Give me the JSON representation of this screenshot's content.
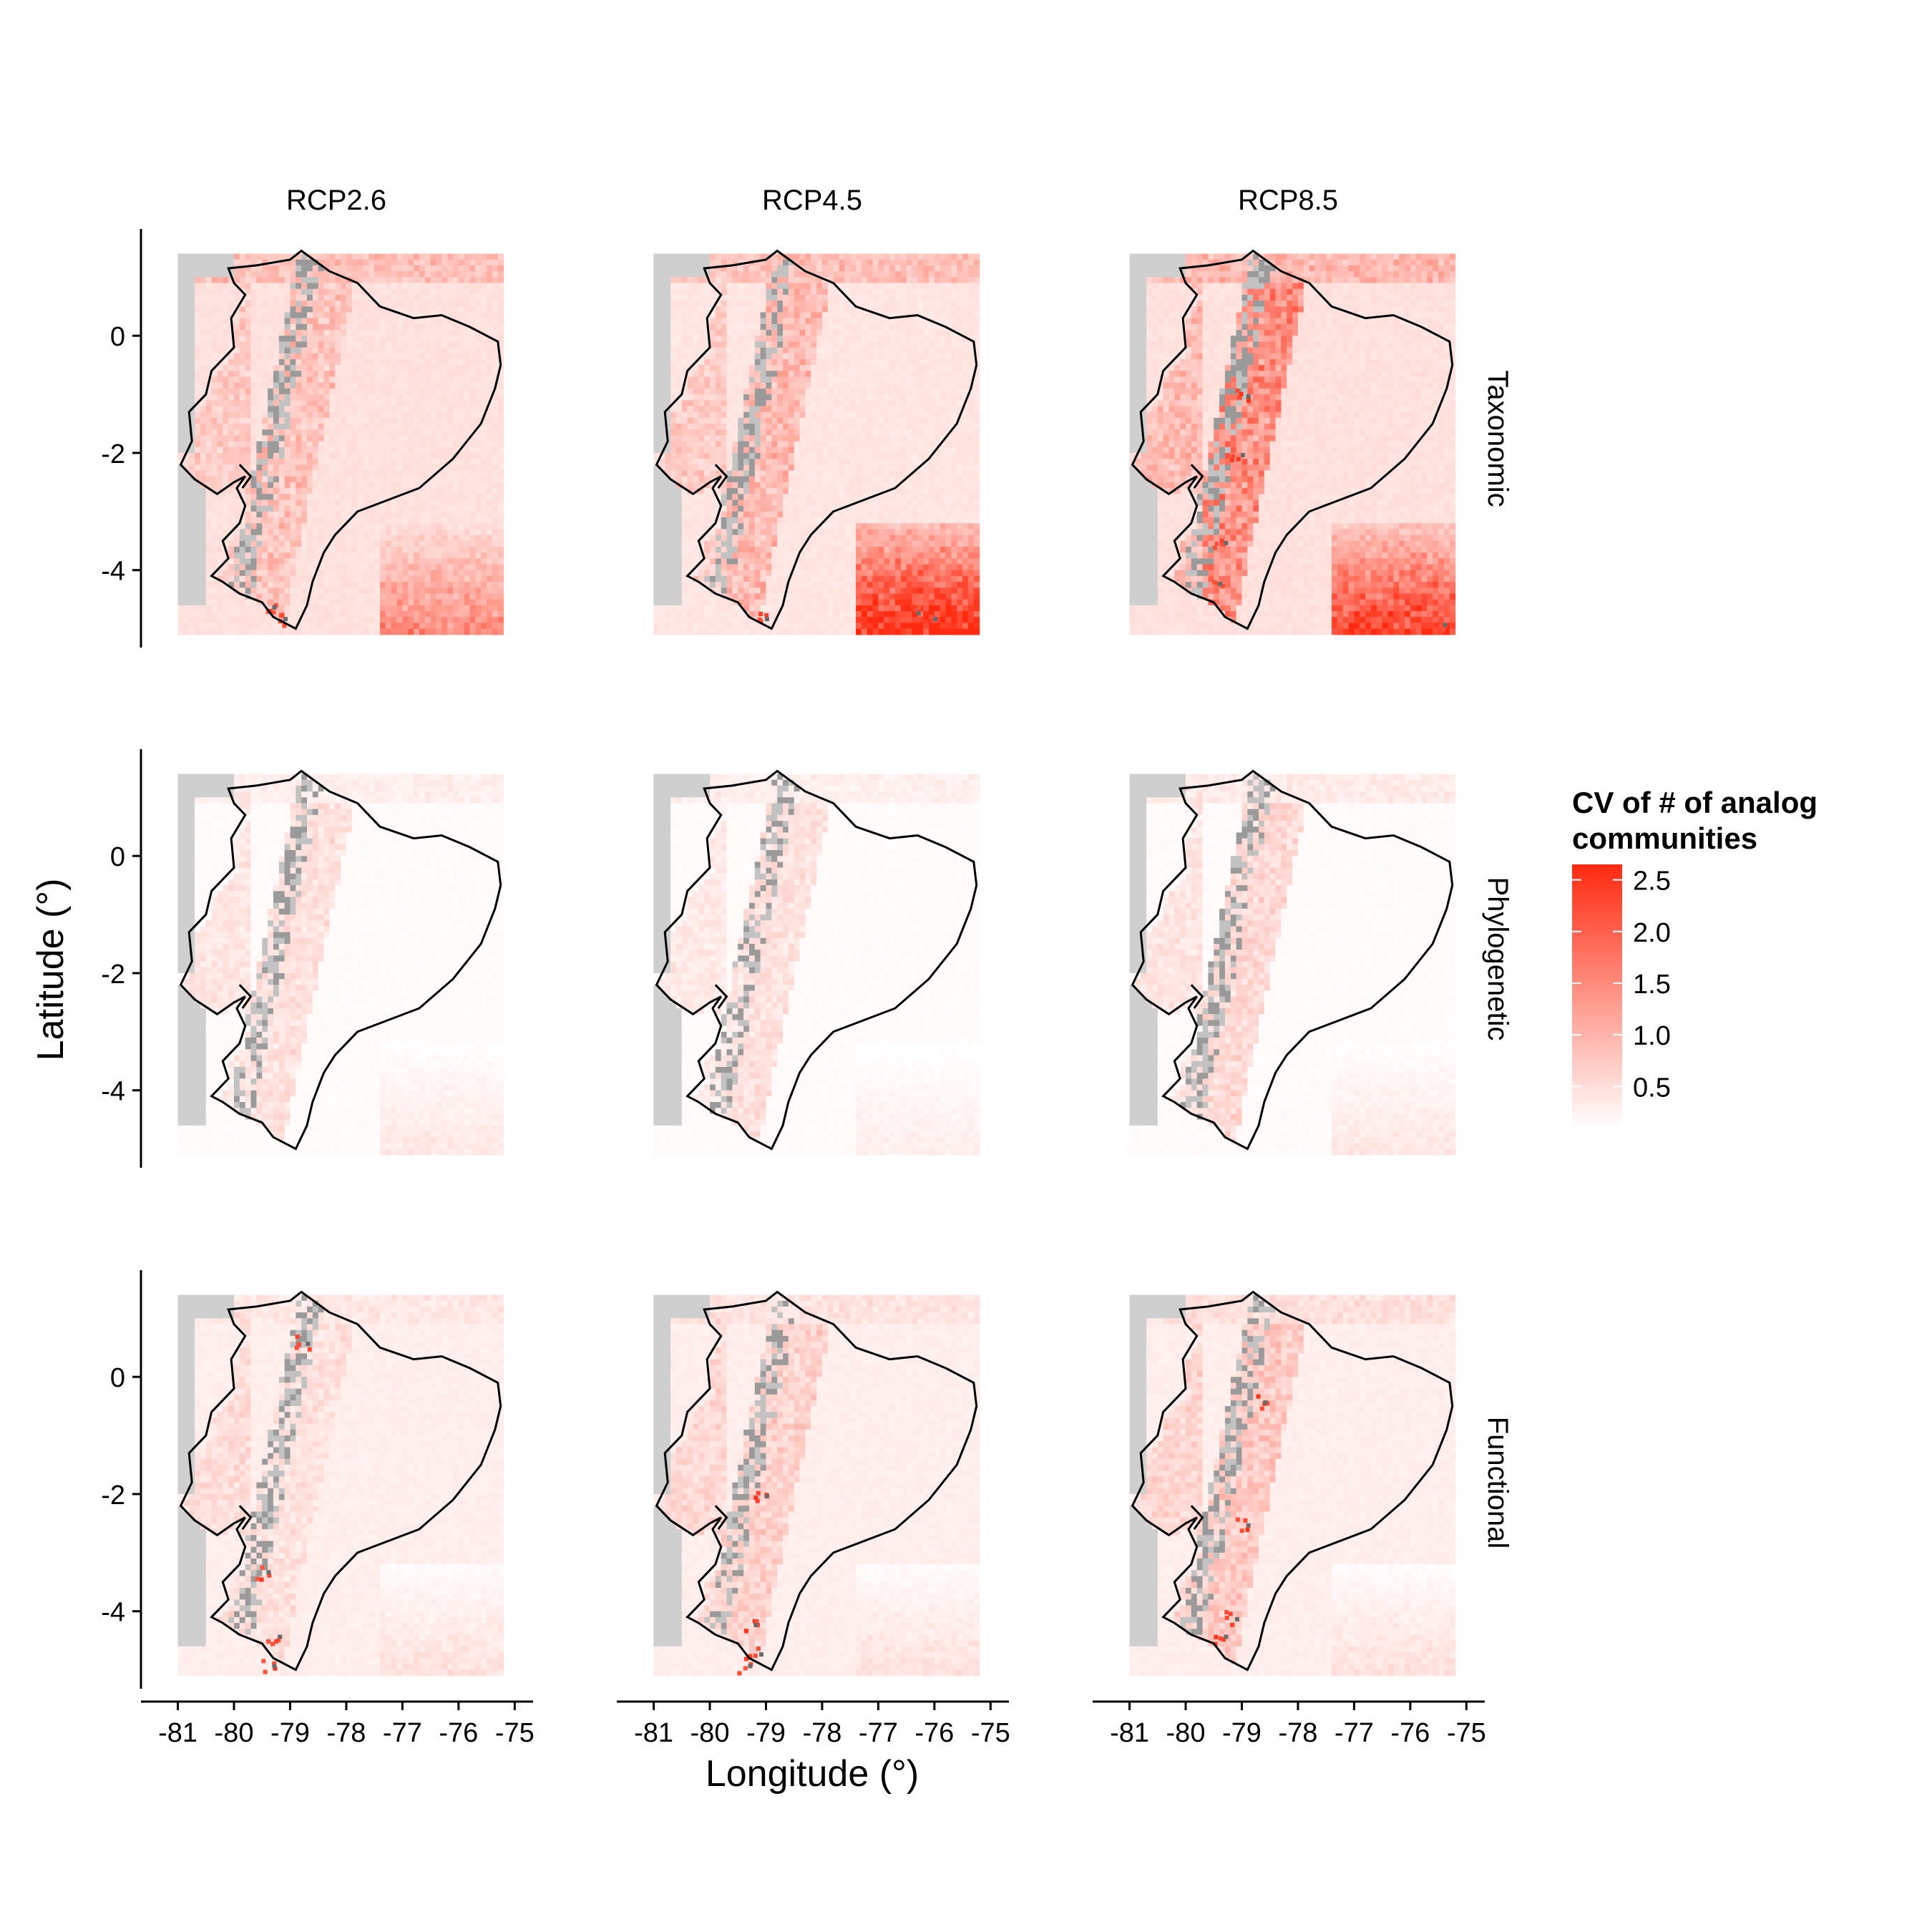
{
  "chart_data": {
    "type": "heatmap",
    "subtype": "faceted raster map",
    "x_label": "Longitude (°)",
    "y_label": "Latitude (°)",
    "x_ticks": [
      -81,
      -80,
      -79,
      -78,
      -77,
      -76,
      -75
    ],
    "x_tick_labels": [
      "-81",
      "-80",
      "-79",
      "-78",
      "-77",
      "-76",
      "-75"
    ],
    "y_ticks": [
      0,
      -2,
      -4
    ],
    "y_tick_labels": [
      "0",
      "-2",
      "-4"
    ],
    "xlim": [
      -81.3,
      -74.8
    ],
    "ylim": [
      -5.2,
      1.7
    ],
    "map_extent": {
      "lon": [
        -81.0,
        -75.3
      ],
      "lat": [
        -5.0,
        1.4
      ]
    },
    "columns": [
      "RCP2.6",
      "RCP4.5",
      "RCP8.5"
    ],
    "rows": [
      "Taxonomic",
      "Phylogenetic",
      "Functional"
    ],
    "legend": {
      "title_line1": "CV of # of analog",
      "title_line2": "communities",
      "position": "right",
      "range": [
        0.1,
        2.65
      ],
      "breaks": [
        2.5,
        2.0,
        1.5,
        1.0,
        0.5
      ],
      "break_labels": [
        "2.5",
        "2.0",
        "1.5",
        "1.0",
        "0.5"
      ],
      "low_color": "#ffffff",
      "high_color": "#ff2a10"
    },
    "na_color": "#cfcfcf",
    "mountain_shadow_color": "#6b6b6b",
    "outline_color": "#000000",
    "panels": [
      {
        "row": "Taxonomic",
        "col": "RCP2.6",
        "background_cv": 0.45,
        "andes_cv": 0.9,
        "southeast_cv": 1.0,
        "north_cv": 0.9,
        "coast_cv": 0.7,
        "hotspot_cv": 2.5,
        "hotspots": [
          {
            "lon": -79.2,
            "lat": -4.8
          },
          {
            "lon": -79.4,
            "lat": -4.6
          }
        ]
      },
      {
        "row": "Taxonomic",
        "col": "RCP4.5",
        "background_cv": 0.4,
        "andes_cv": 1.0,
        "southeast_cv": 1.8,
        "north_cv": 0.9,
        "coast_cv": 0.7,
        "hotspot_cv": 2.5,
        "hotspots": [
          {
            "lon": -79.1,
            "lat": -4.8
          },
          {
            "lon": -76.1,
            "lat": -4.8
          },
          {
            "lon": -76.4,
            "lat": -4.7
          }
        ]
      },
      {
        "row": "Taxonomic",
        "col": "RCP8.5",
        "background_cv": 0.45,
        "andes_cv": 1.6,
        "southeast_cv": 1.6,
        "north_cv": 1.0,
        "coast_cv": 0.9,
        "hotspot_cv": 2.6,
        "hotspots": [
          {
            "lon": -79.0,
            "lat": -1.0
          },
          {
            "lon": -79.1,
            "lat": -2.0
          },
          {
            "lon": -79.4,
            "lat": -3.5
          },
          {
            "lon": -79.5,
            "lat": -4.2
          },
          {
            "lon": -75.5,
            "lat": -4.9
          }
        ]
      },
      {
        "row": "Phylogenetic",
        "col": "RCP2.6",
        "background_cv": 0.15,
        "andes_cv": 0.5,
        "southeast_cv": 0.25,
        "north_cv": 0.3,
        "coast_cv": 0.4,
        "hotspot_cv": 1.0,
        "hotspots": []
      },
      {
        "row": "Phylogenetic",
        "col": "RCP4.5",
        "background_cv": 0.15,
        "andes_cv": 0.5,
        "southeast_cv": 0.2,
        "north_cv": 0.3,
        "coast_cv": 0.35,
        "hotspot_cv": 1.0,
        "hotspots": []
      },
      {
        "row": "Phylogenetic",
        "col": "RCP8.5",
        "background_cv": 0.15,
        "andes_cv": 0.6,
        "southeast_cv": 0.25,
        "north_cv": 0.35,
        "coast_cv": 0.4,
        "hotspot_cv": 1.1,
        "hotspots": []
      },
      {
        "row": "Functional",
        "col": "RCP2.6",
        "background_cv": 0.3,
        "andes_cv": 0.5,
        "southeast_cv": 0.3,
        "north_cv": 0.4,
        "coast_cv": 0.5,
        "hotspot_cv": 2.5,
        "hotspots": [
          {
            "lon": -79.5,
            "lat": -3.3
          },
          {
            "lon": -79.3,
            "lat": -4.4
          },
          {
            "lon": -79.4,
            "lat": -4.9
          },
          {
            "lon": -78.8,
            "lat": 0.6
          }
        ]
      },
      {
        "row": "Functional",
        "col": "RCP4.5",
        "background_cv": 0.3,
        "andes_cv": 0.7,
        "southeast_cv": 0.3,
        "north_cv": 0.45,
        "coast_cv": 0.55,
        "hotspot_cv": 2.6,
        "hotspots": [
          {
            "lon": -79.3,
            "lat": -4.2
          },
          {
            "lon": -79.2,
            "lat": -4.7
          },
          {
            "lon": -79.4,
            "lat": -4.9
          },
          {
            "lon": -79.1,
            "lat": -2.0
          }
        ]
      },
      {
        "row": "Functional",
        "col": "RCP8.5",
        "background_cv": 0.3,
        "andes_cv": 0.8,
        "southeast_cv": 0.3,
        "north_cv": 0.5,
        "coast_cv": 0.6,
        "hotspot_cv": 2.6,
        "hotspots": [
          {
            "lon": -79.2,
            "lat": -4.1
          },
          {
            "lon": -79.4,
            "lat": -4.4
          },
          {
            "lon": -78.7,
            "lat": -0.4
          },
          {
            "lon": -79.0,
            "lat": -2.5
          }
        ]
      }
    ]
  }
}
